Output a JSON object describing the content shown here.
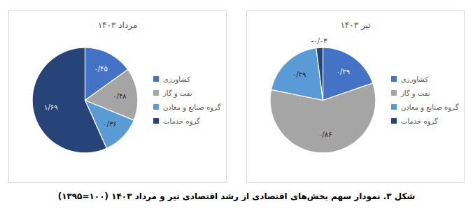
{
  "chart_data": [
    {
      "type": "pie",
      "title": "مرداد ۱۴۰۳",
      "categories": [
        "کشاورزی",
        "نفت و گاز",
        "گروه صنایع و معادن",
        "گروه خدمات"
      ],
      "values": [
        0.45,
        0.48,
        0.36,
        1.69
      ],
      "value_labels": [
        "۰/۴۵",
        "۰/۴۸",
        "۰/۳۶",
        "۱/۶۹"
      ],
      "colors": [
        "#4472c4",
        "#a5a5a5",
        "#5b9bd5",
        "#264478"
      ],
      "data_labels": true,
      "legend": "right"
    },
    {
      "type": "pie",
      "title": "تیر ۱۴۰۳",
      "categories": [
        "کشاورزی",
        "نفت و گاز",
        "گروه صنایع و معادن",
        "گروه خدمات"
      ],
      "values": [
        0.29,
        0.86,
        0.29,
        -0.03
      ],
      "value_labels": [
        "۰/۲۹",
        "۰/۸۶",
        "۰/۲۹",
        "-۰/۰۳"
      ],
      "colors": [
        "#4472c4",
        "#a5a5a5",
        "#5b9bd5",
        "#264478"
      ],
      "data_labels": true,
      "legend": "right"
    }
  ],
  "caption": "شکل ۳. نمودار سهم بخش‌های اقتصادی از رشد اقتصادی تیر و مرداد ۱۴۰۳ (۱۰۰=۱۳۹۵)"
}
